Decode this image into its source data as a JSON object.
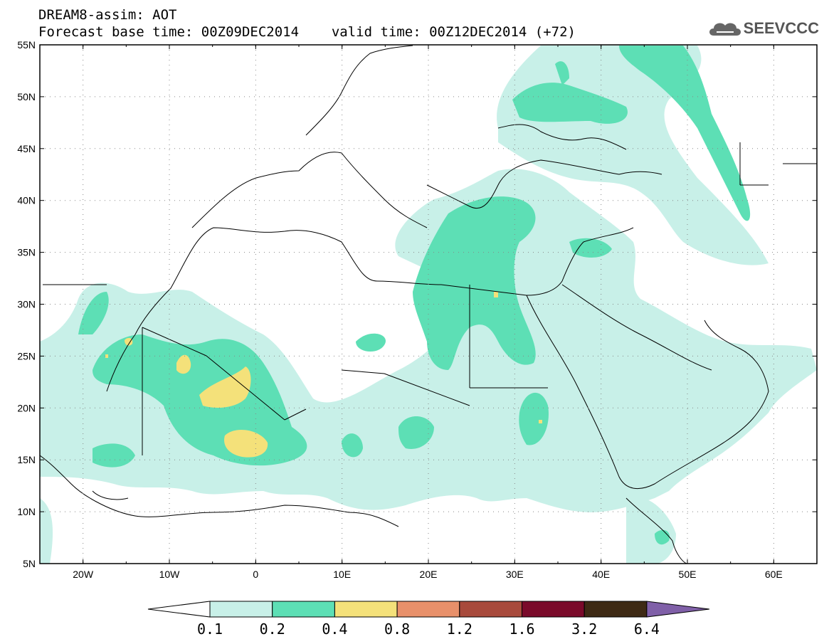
{
  "header": {
    "title_line1": "DREAM8-assim: AOT",
    "base_time": "Forecast base time: 00Z09DEC2014",
    "valid_time": "valid time: 00Z12DEC2014 (+72)",
    "logo_text": "SEEVCCC",
    "logo_icon": "cloud-icon"
  },
  "map": {
    "field": "AOT",
    "lon_range": [
      -25,
      65
    ],
    "lat_range": [
      5,
      55
    ],
    "lat_labels": [
      "55N",
      "50N",
      "45N",
      "40N",
      "35N",
      "30N",
      "25N",
      "20N",
      "15N",
      "10N",
      "5N"
    ],
    "lon_labels": [
      "20W",
      "10W",
      "0",
      "10E",
      "20E",
      "30E",
      "40E",
      "50E",
      "60E"
    ],
    "grid": "dotted",
    "max_region": "Sahara / Sahel around 20N–25N, 5W–0"
  },
  "colorbar": {
    "levels": [
      "0.1",
      "0.2",
      "0.4",
      "0.8",
      "1.2",
      "1.6",
      "3.2",
      "6.4"
    ],
    "colors": [
      "#ffffff",
      "#c8f0e8",
      "#5ddfb5",
      "#f4e17a",
      "#e8906a",
      "#a84a3c",
      "#7a0a2a",
      "#3e2a14",
      "#8060a8"
    ]
  }
}
